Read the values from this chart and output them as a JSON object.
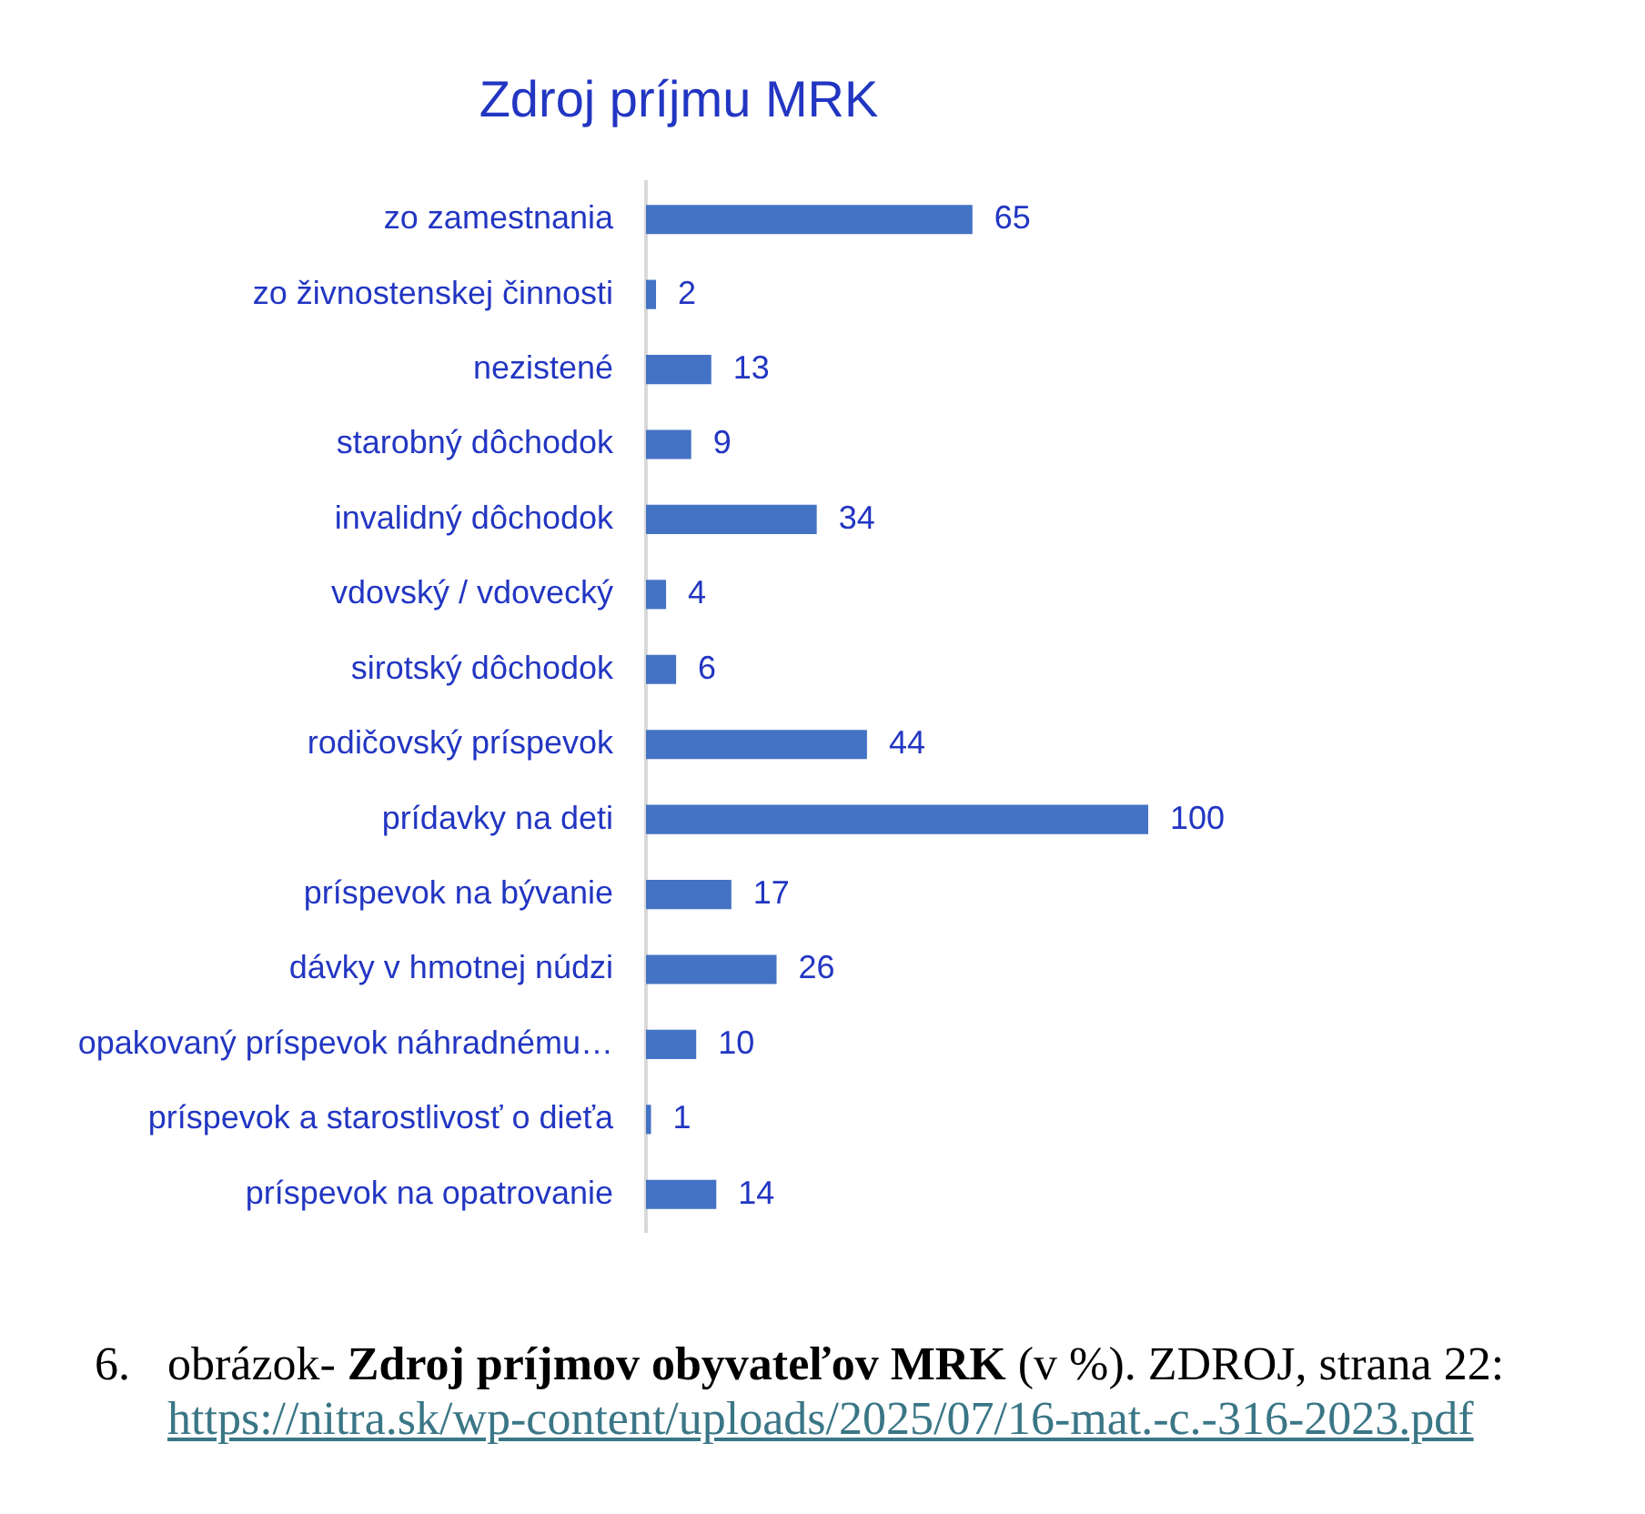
{
  "chart_data": {
    "type": "bar",
    "orientation": "horizontal",
    "title": "Zdroj príjmu MRK",
    "categories": [
      "zo zamestnania",
      "zo živnostenskej činnosti",
      "nezistené",
      "starobný dôchodok",
      "invalidný dôchodok",
      "vdovský / vdovecký",
      "sirotský dôchodok",
      "rodičovský príspevok",
      "prídavky na deti",
      "príspevok na bývanie",
      "dávky v hmotnej núdzi",
      "opakovaný príspevok náhradnému…",
      "príspevok a starostlivosť o dieťa",
      "príspevok na opatrovanie"
    ],
    "values": [
      65,
      2,
      13,
      9,
      34,
      4,
      6,
      44,
      100,
      17,
      26,
      10,
      1,
      14
    ],
    "color": "#4472c4",
    "data_labels": true,
    "grid": false,
    "legend": false,
    "tick_labels": "y",
    "annotations": [
      "6.",
      "obrázok-",
      "Zdroj príjmov obyvateľov MRK",
      "(v %). ZDROJ, strana 22:",
      "https://nitra.sk/wp-content/uploads/2025/07/16-mat.-c.-316-2023.pdf"
    ]
  }
}
